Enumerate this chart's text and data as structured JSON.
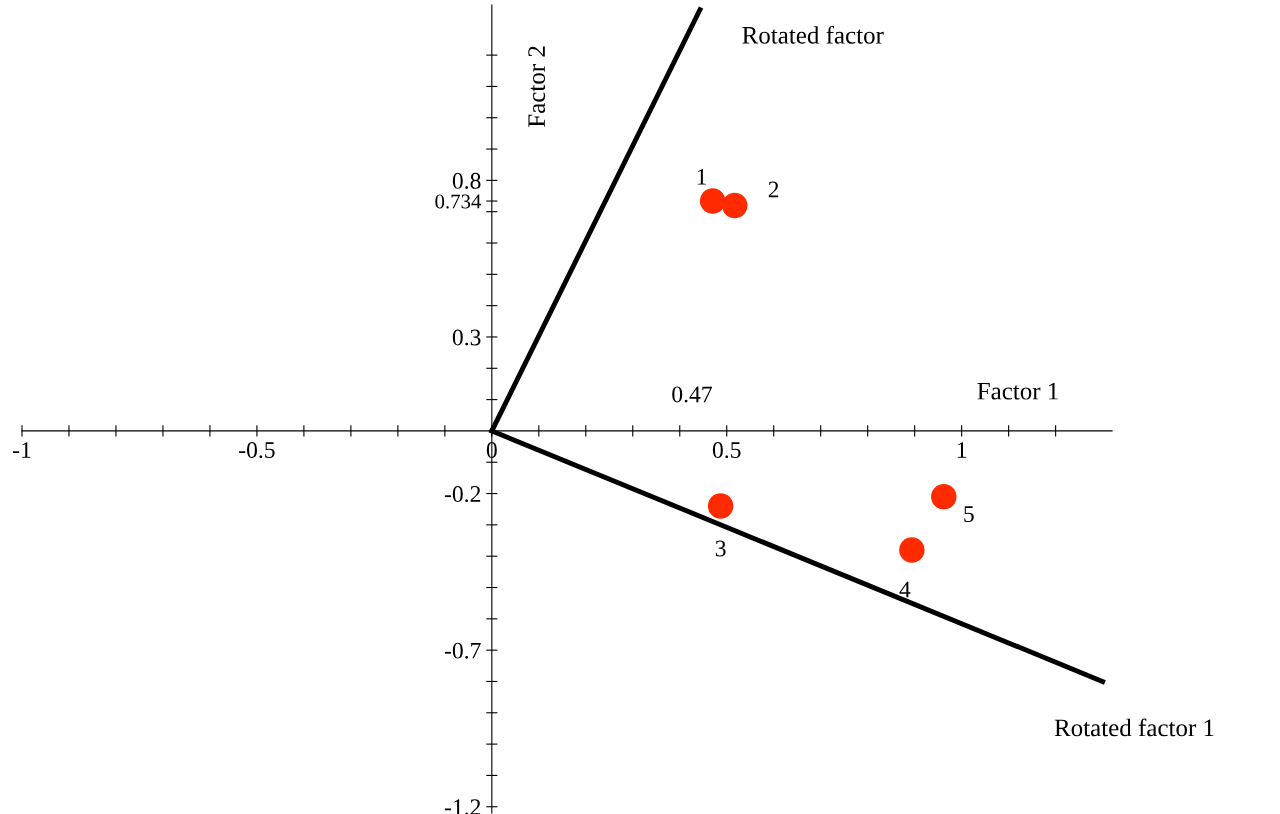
{
  "chart_data": {
    "type": "scatter",
    "xlabel": "Factor 1",
    "ylabel": "Factor 2",
    "xlim": [
      -1.0,
      1.32
    ],
    "ylim": [
      -1.22,
      1.36
    ],
    "xticks": [
      -1,
      {
        "value": -0.9,
        "label": null
      },
      {
        "value": -0.8,
        "label": null
      },
      {
        "value": -0.7,
        "label": null
      },
      {
        "value": -0.6,
        "label": null
      },
      -0.5,
      {
        "value": -0.4,
        "label": null
      },
      {
        "value": -0.3,
        "label": null
      },
      {
        "value": -0.2,
        "label": null
      },
      {
        "value": -0.1,
        "label": null
      },
      0,
      {
        "value": 0.1,
        "label": null
      },
      {
        "value": 0.2,
        "label": null
      },
      {
        "value": 0.3,
        "label": null
      },
      {
        "value": 0.4,
        "label": null
      },
      0.5,
      {
        "value": 0.6,
        "label": null
      },
      {
        "value": 0.7,
        "label": null
      },
      {
        "value": 0.8,
        "label": null
      },
      {
        "value": 0.9,
        "label": null
      },
      1,
      {
        "value": 1.1,
        "label": null
      },
      {
        "value": 1.2,
        "label": null
      }
    ],
    "yticks": [
      -1.2,
      {
        "value": -1.1,
        "label": null
      },
      {
        "value": -1.0,
        "label": null
      },
      {
        "value": -0.9,
        "label": null
      },
      {
        "value": -0.8,
        "label": null
      },
      -0.7,
      {
        "value": -0.6,
        "label": null
      },
      {
        "value": -0.5,
        "label": null
      },
      {
        "value": -0.4,
        "label": null
      },
      {
        "value": -0.3,
        "label": null
      },
      -0.2,
      {
        "value": -0.1,
        "label": null
      },
      {
        "value": 0.1,
        "label": null
      },
      {
        "value": 0.2,
        "label": null
      },
      0.3,
      {
        "value": 0.4,
        "label": null
      },
      {
        "value": 0.5,
        "label": null
      },
      {
        "value": 0.6,
        "label": null
      },
      {
        "value": 0.7,
        "label": null
      },
      0.734,
      0.8,
      {
        "value": 0.9,
        "label": null
      },
      {
        "value": 1.0,
        "label": null
      },
      {
        "value": 1.1,
        "label": null
      },
      {
        "value": 1.2,
        "label": null
      }
    ],
    "grid": false,
    "series": [
      {
        "marker": "circle",
        "color": "#ff2a00",
        "x": [
          0.47,
          0.517,
          0.487,
          0.894,
          0.962
        ],
        "values": [
          0.734,
          0.72,
          -0.24,
          -0.38,
          -0.21
        ]
      },
      {
        "type": "line",
        "marker": "none",
        "name": "Rotated factor",
        "color": "#000000",
        "x": [
          0,
          0.443
        ],
        "values": [
          0,
          1.345
        ]
      },
      {
        "type": "line",
        "marker": "none",
        "name": "Rotated factor 1",
        "color": "#000000",
        "x": [
          0,
          1.3
        ],
        "values": [
          0,
          -0.8
        ]
      }
    ],
    "annotations": [
      {
        "text": "1",
        "x": 0.47,
        "y": 0.734
      },
      {
        "text": "2",
        "x": 0.517,
        "y": 0.72
      },
      {
        "text": "3",
        "x": 0.487,
        "y": -0.24
      },
      {
        "text": "4",
        "x": 0.894,
        "y": -0.38
      },
      {
        "text": "5",
        "x": 0.962,
        "y": -0.21
      },
      "0.47"
    ]
  }
}
